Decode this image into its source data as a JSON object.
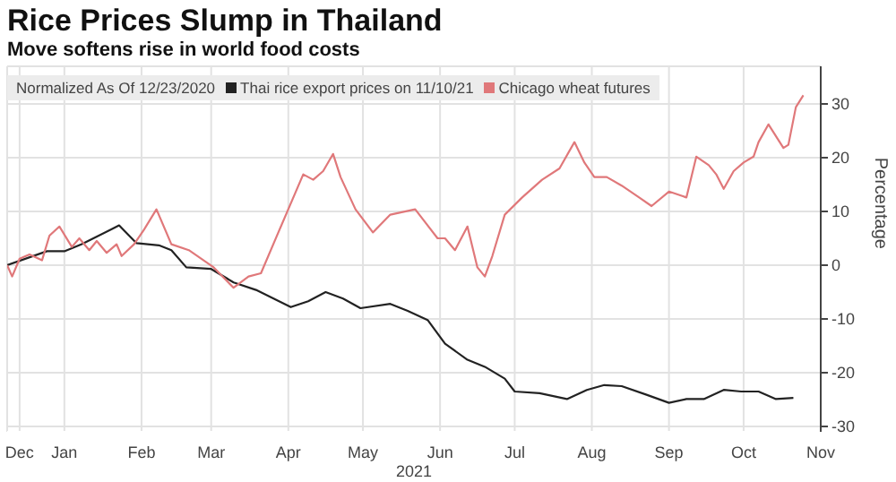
{
  "chart_data": {
    "type": "line",
    "title": "Rice Prices Slump in Thailand",
    "subtitle": "Move softens rise in world food costs",
    "legend_title": "Normalized As Of 12/23/2020",
    "ylabel": "Percentage",
    "xlabel": "2021",
    "xlim": [
      "2020-12-23",
      "2021-11-15"
    ],
    "xticks": [
      {
        "value": "2020-12-28",
        "label": "Dec"
      },
      {
        "value": "2021-01-15",
        "label": "Jan"
      },
      {
        "value": "2021-02-15",
        "label": "Feb"
      },
      {
        "value": "2021-03-15",
        "label": "Mar"
      },
      {
        "value": "2021-04-15",
        "label": "Apr"
      },
      {
        "value": "2021-05-15",
        "label": "May"
      },
      {
        "value": "2021-06-15",
        "label": "Jun"
      },
      {
        "value": "2021-07-15",
        "label": "Jul"
      },
      {
        "value": "2021-08-15",
        "label": "Aug"
      },
      {
        "value": "2021-09-15",
        "label": "Sep"
      },
      {
        "value": "2021-10-15",
        "label": "Oct"
      },
      {
        "value": "2021-11-15",
        "label": "Nov"
      }
    ],
    "ylim": [
      -31,
      37
    ],
    "yticks": [
      -30,
      -20,
      -10,
      0,
      10,
      20,
      30
    ],
    "grid": true,
    "legend": "top left",
    "marker": "none",
    "line_style": "solid",
    "series": [
      {
        "name": "Thai rice export prices  on 11/10/21",
        "color": "#222222",
        "x": [
          "2020-12-23",
          "2021-01-08",
          "2021-01-15",
          "2021-01-22",
          "2021-02-06",
          "2021-02-13",
          "2021-02-22",
          "2021-02-27",
          "2021-03-05",
          "2021-03-15",
          "2021-03-24",
          "2021-04-02",
          "2021-04-16",
          "2021-04-23",
          "2021-04-30",
          "2021-05-07",
          "2021-05-14",
          "2021-05-26",
          "2021-06-02",
          "2021-06-10",
          "2021-06-17",
          "2021-06-26",
          "2021-07-03",
          "2021-07-11",
          "2021-07-15",
          "2021-07-25",
          "2021-08-05",
          "2021-08-13",
          "2021-08-20",
          "2021-08-27",
          "2021-09-06",
          "2021-09-15",
          "2021-09-22",
          "2021-09-29",
          "2021-10-07",
          "2021-10-14",
          "2021-10-21",
          "2021-10-28",
          "2021-11-04"
        ],
        "values": [
          0,
          2.6,
          2.6,
          3.9,
          7.4,
          4.1,
          3.7,
          2.8,
          -0.4,
          -0.7,
          -3.2,
          -4.6,
          -7.8,
          -6.7,
          -5,
          -6.2,
          -8,
          -7.2,
          -8.5,
          -10.2,
          -14.6,
          -17.6,
          -18.9,
          -21.1,
          -23.5,
          -23.8,
          -24.9,
          -23.2,
          -22.3,
          -22.5,
          -24.1,
          -25.6,
          -24.9,
          -24.9,
          -23.2,
          -23.5,
          -23.5,
          -24.9,
          -24.7
        ]
      },
      {
        "name": "Chicago wheat futures",
        "color": "#e0787a",
        "x": [
          "2020-12-23",
          "2020-12-25",
          "2020-12-28",
          "2021-01-01",
          "2021-01-06",
          "2021-01-09",
          "2021-01-13",
          "2021-01-18",
          "2021-01-21",
          "2021-01-25",
          "2021-01-28",
          "2021-02-01",
          "2021-02-05",
          "2021-02-07",
          "2021-02-12",
          "2021-02-16",
          "2021-02-21",
          "2021-02-27",
          "2021-03-06",
          "2021-03-16",
          "2021-03-24",
          "2021-03-30",
          "2021-04-04",
          "2021-04-11",
          "2021-04-21",
          "2021-04-25",
          "2021-04-29",
          "2021-05-03",
          "2021-05-06",
          "2021-05-12",
          "2021-05-19",
          "2021-05-26",
          "2021-06-05",
          "2021-06-14",
          "2021-06-17",
          "2021-06-21",
          "2021-06-26",
          "2021-06-30",
          "2021-07-03",
          "2021-07-06",
          "2021-07-11",
          "2021-07-18",
          "2021-07-26",
          "2021-08-02",
          "2021-08-08",
          "2021-08-12",
          "2021-08-16",
          "2021-08-21",
          "2021-08-27",
          "2021-09-03",
          "2021-09-08",
          "2021-09-15",
          "2021-09-22",
          "2021-09-26",
          "2021-10-01",
          "2021-10-04",
          "2021-10-07",
          "2021-10-11",
          "2021-10-15",
          "2021-10-19",
          "2021-10-21",
          "2021-10-25",
          "2021-10-31",
          "2021-11-02",
          "2021-11-05",
          "2021-11-08"
        ],
        "values": [
          0,
          -2.1,
          1.2,
          2,
          0.9,
          5.5,
          7.2,
          3.4,
          5,
          2.8,
          4.5,
          2.3,
          3.9,
          1.7,
          3.9,
          6.6,
          10.4,
          3.9,
          2.8,
          -0.4,
          -4.2,
          -2.1,
          -1.5,
          6.1,
          16.9,
          15.9,
          17.5,
          20.7,
          16.4,
          10.4,
          6.1,
          9.4,
          10.4,
          5,
          5,
          2.8,
          7.2,
          -0.4,
          -2.1,
          1.7,
          9.4,
          12.6,
          15.9,
          18,
          22.9,
          19.1,
          16.4,
          16.4,
          14.8,
          12.6,
          11,
          13.7,
          12.6,
          20.2,
          18.6,
          16.9,
          14.2,
          17.5,
          19.1,
          20.2,
          22.9,
          26.2,
          21.8,
          22.4,
          29.4,
          31.6
        ]
      }
    ]
  }
}
